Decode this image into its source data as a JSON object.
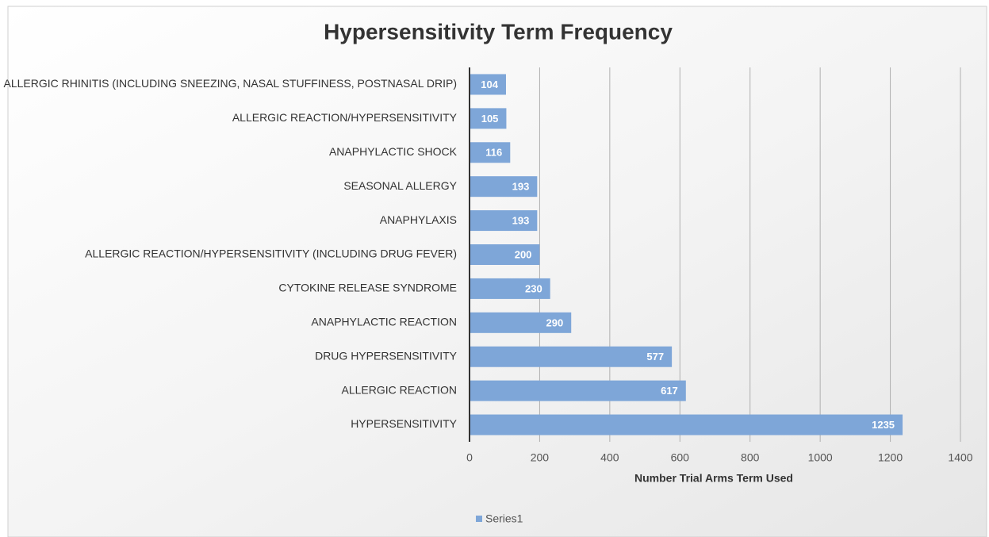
{
  "chart_data": {
    "type": "bar",
    "orientation": "horizontal",
    "title": "Hypersensitivity Term Frequency",
    "x_label": "Number Trial Arms Term Used",
    "categories": [
      "ALLERGIC RHINITIS (INCLUDING SNEEZING, NASAL STUFFINESS, POSTNASAL DRIP)",
      "ALLERGIC REACTION/HYPERSENSITIVITY",
      "ANAPHYLACTIC SHOCK",
      "SEASONAL ALLERGY",
      "ANAPHYLAXIS",
      "ALLERGIC REACTION/HYPERSENSITIVITY (INCLUDING DRUG FEVER)",
      "CYTOKINE RELEASE SYNDROME",
      "ANAPHYLACTIC REACTION",
      "DRUG HYPERSENSITIVITY",
      "ALLERGIC REACTION",
      "HYPERSENSITIVITY"
    ],
    "series": [
      {
        "name": "Series1",
        "color": "#7ea6d8",
        "values": [
          104,
          105,
          116,
          193,
          193,
          200,
          230,
          290,
          577,
          617,
          1235
        ]
      }
    ],
    "xlim": [
      0,
      1400
    ],
    "xticks": [
      0,
      200,
      400,
      600,
      800,
      1000,
      1200,
      1400
    ],
    "grid": true,
    "legend": "bottom"
  }
}
